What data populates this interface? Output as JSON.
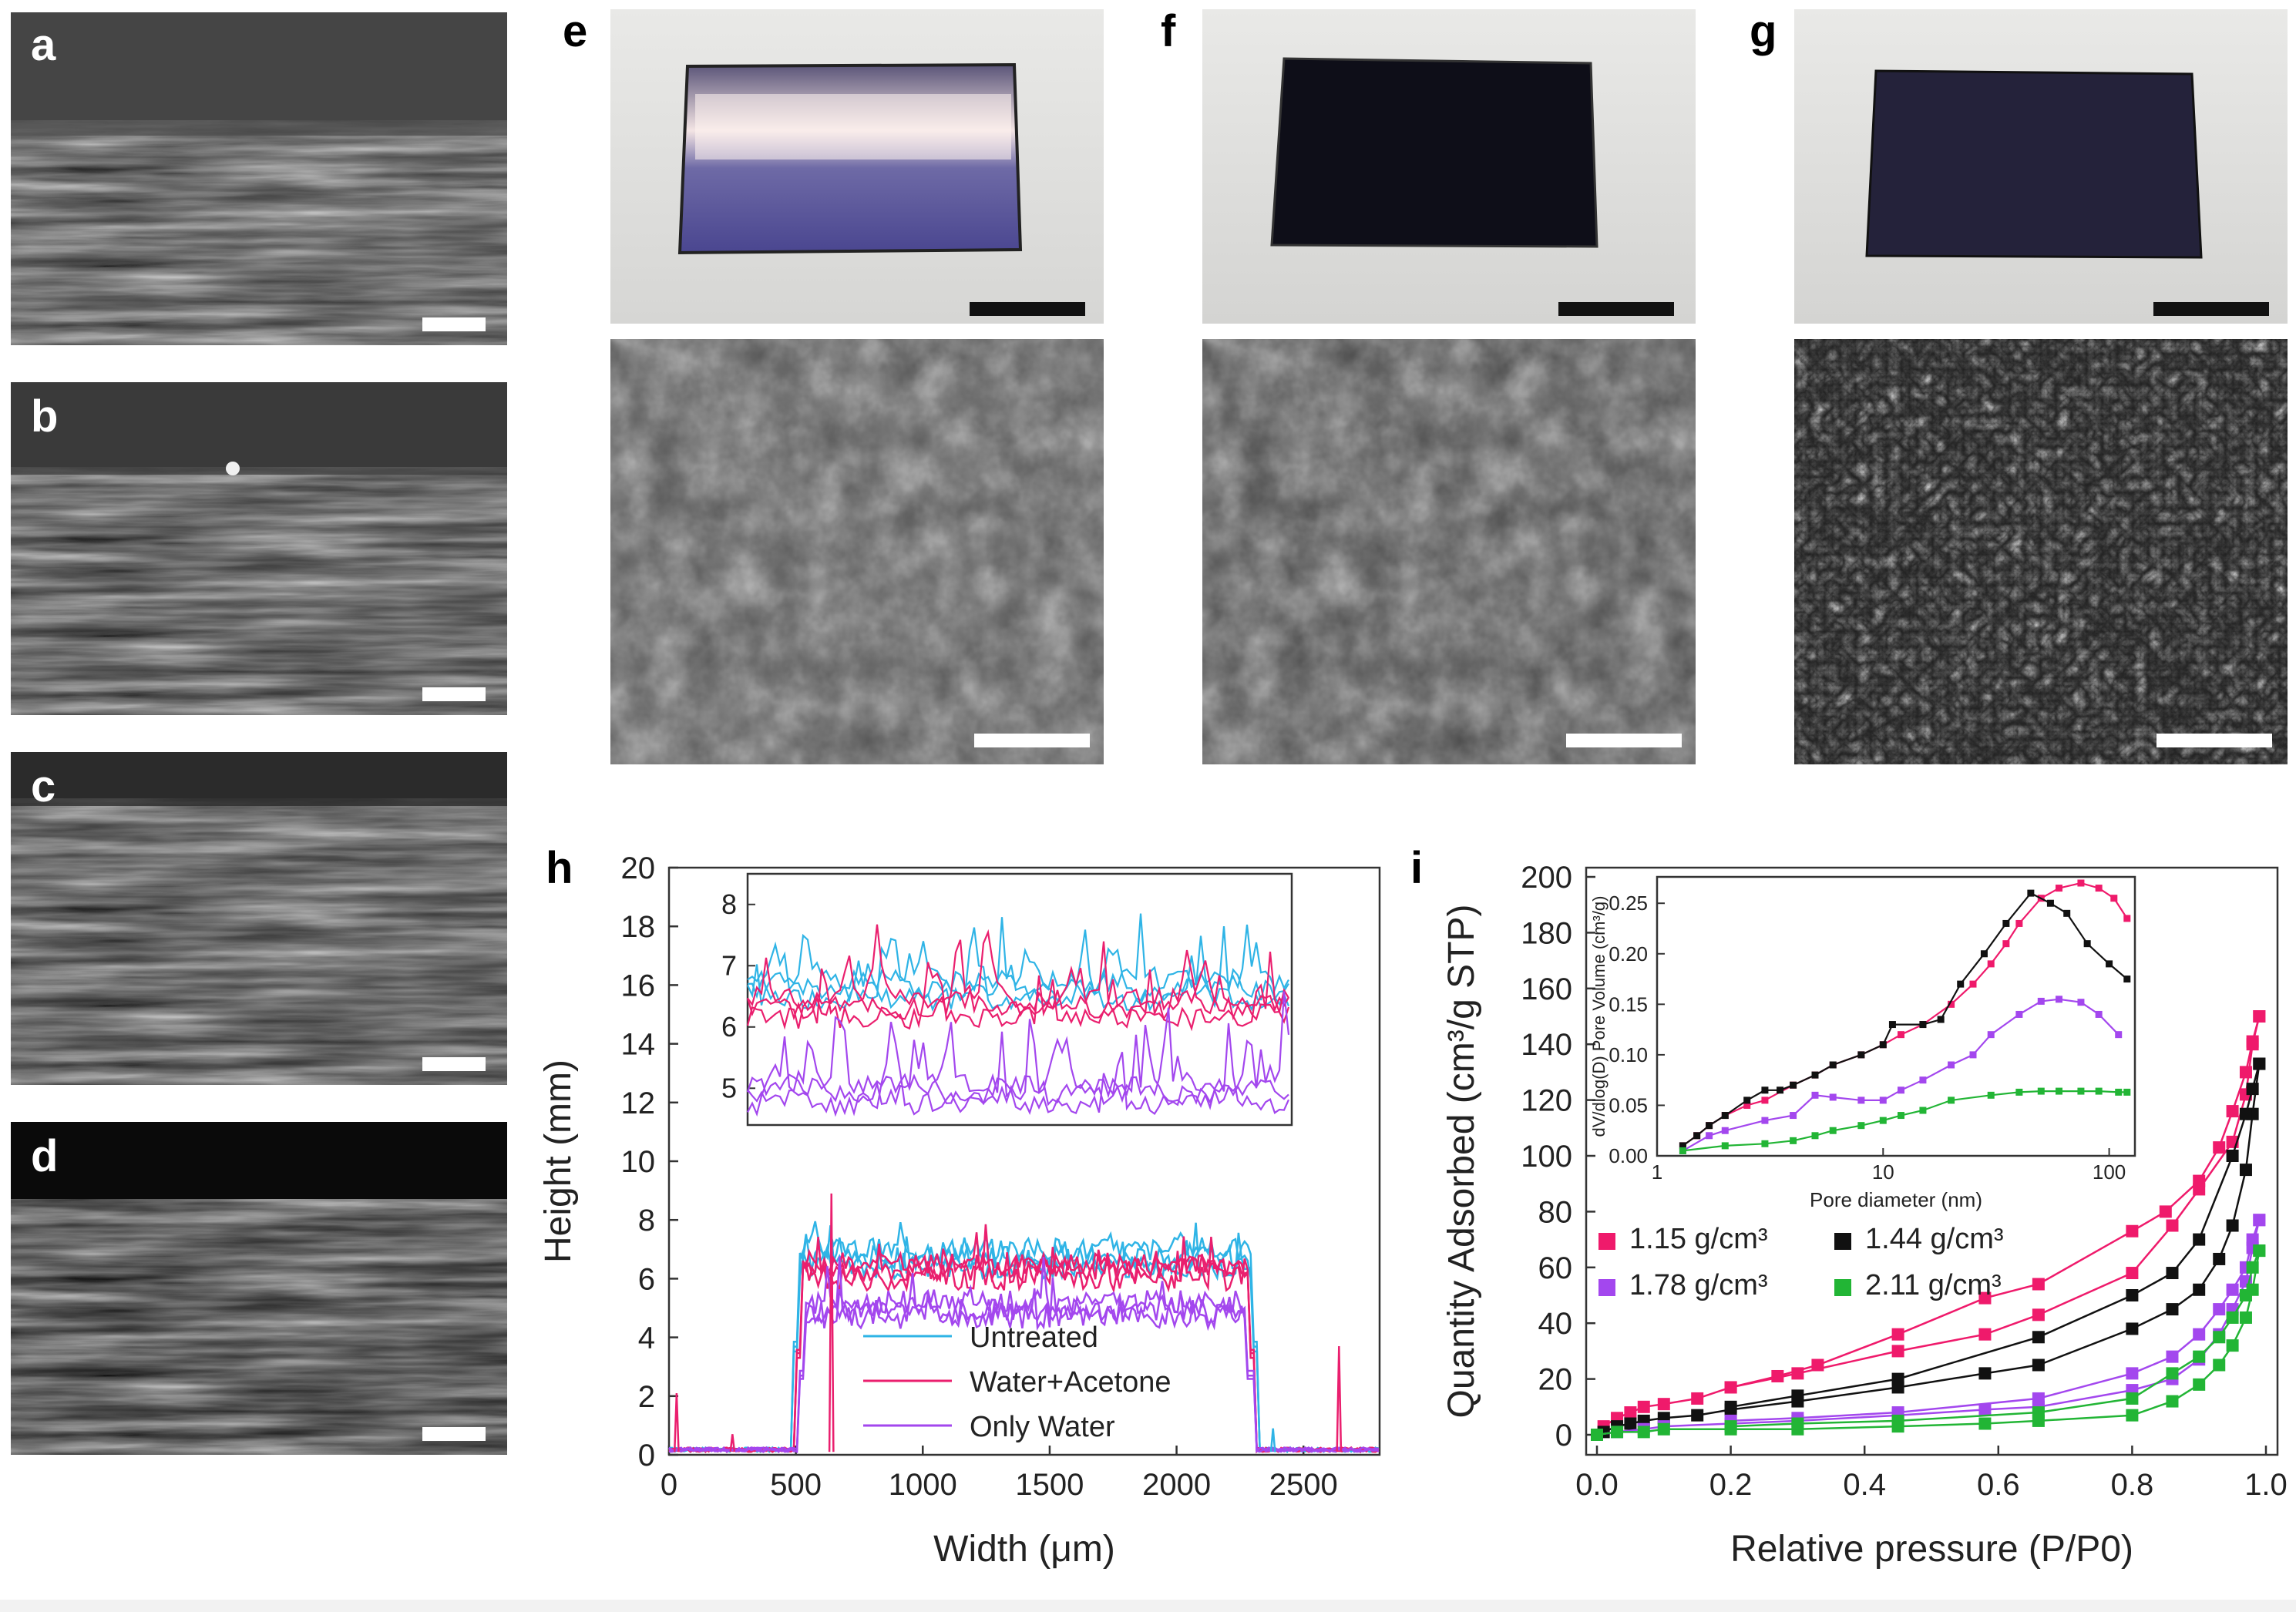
{
  "panels": {
    "a": "a",
    "b": "b",
    "c": "c",
    "d": "d",
    "e": "e",
    "f": "f",
    "g": "g",
    "h": "h",
    "i": "i"
  },
  "colors": {
    "untreated": "#2fb4e6",
    "water_acetone": "#ea1f6e",
    "only_water": "#a347ee",
    "d115": "#ef1a6b",
    "d144": "#111111",
    "d178": "#a347ee",
    "d211": "#22b535"
  },
  "chart_data": [
    {
      "id": "h",
      "type": "line",
      "xlabel": "Width (μm)",
      "ylabel": "Height (mm)",
      "xlim": [
        0,
        2800
      ],
      "ylim": [
        0,
        20
      ],
      "xticks": [
        0,
        500,
        1000,
        1500,
        2000,
        2500
      ],
      "yticks": [
        0,
        2,
        4,
        6,
        8,
        10,
        12,
        14,
        16,
        18,
        20
      ],
      "legend_position": "center-bottom",
      "series": [
        {
          "name": "Untreated",
          "color_key": "untreated",
          "plateau": [
            6.7,
            7.0,
            6.4
          ],
          "edges": [
            500,
            2310
          ]
        },
        {
          "name": "Water+Acetone",
          "color_key": "water_acetone",
          "plateau": [
            6.3,
            6.0,
            6.5
          ],
          "edges": [
            510,
            2300
          ]
        },
        {
          "name": "Only Water",
          "color_key": "only_water",
          "plateau": [
            4.9,
            5.2,
            4.7
          ],
          "edges": [
            520,
            2290
          ]
        }
      ],
      "spikes": [
        {
          "x": 30,
          "y": 2.1,
          "color_key": "water_acetone"
        },
        {
          "x": 250,
          "y": 0.7,
          "color_key": "water_acetone"
        },
        {
          "x": 640,
          "y": 8.9,
          "color_key": "water_acetone"
        },
        {
          "x": 2640,
          "y": 3.7,
          "color_key": "water_acetone"
        },
        {
          "x": 2380,
          "y": 0.9,
          "color_key": "untreated"
        }
      ],
      "inset": {
        "yticks": [
          5,
          6,
          7,
          8
        ],
        "ylim": [
          4.4,
          8.5
        ]
      }
    },
    {
      "id": "i",
      "type": "scatter",
      "xlabel": "Relative pressure (P/P0)",
      "ylabel": "Quantity Adsorbed (cm³/g STP)",
      "xlim": [
        0,
        1.0
      ],
      "ylim": [
        0,
        200
      ],
      "xticks": [
        0.0,
        0.2,
        0.4,
        0.6,
        0.8,
        1.0
      ],
      "yticks": [
        0,
        20,
        40,
        60,
        80,
        100,
        120,
        140,
        160,
        180,
        200
      ],
      "legend_position": "center-left",
      "series": [
        {
          "name": "1.15 g/cm³",
          "color_key": "d115",
          "adsorption": [
            [
              0.0,
              0
            ],
            [
              0.01,
              3
            ],
            [
              0.03,
              6
            ],
            [
              0.05,
              8
            ],
            [
              0.07,
              10
            ],
            [
              0.1,
              11
            ],
            [
              0.15,
              13
            ],
            [
              0.2,
              17
            ],
            [
              0.27,
              21
            ],
            [
              0.33,
              25
            ],
            [
              0.45,
              36
            ],
            [
              0.58,
              49
            ],
            [
              0.66,
              54
            ],
            [
              0.8,
              73
            ],
            [
              0.85,
              80
            ],
            [
              0.9,
              91
            ],
            [
              0.93,
              103
            ],
            [
              0.95,
              116
            ],
            [
              0.97,
              130
            ],
            [
              0.98,
              141
            ],
            [
              0.99,
              150
            ]
          ],
          "desorption": [
            [
              0.99,
              150
            ],
            [
              0.98,
              140
            ],
            [
              0.97,
              122
            ],
            [
              0.95,
              105
            ],
            [
              0.9,
              88
            ],
            [
              0.86,
              75
            ],
            [
              0.8,
              58
            ],
            [
              0.66,
              43
            ],
            [
              0.58,
              36
            ],
            [
              0.45,
              30
            ],
            [
              0.3,
              22
            ],
            [
              0.2,
              17
            ]
          ]
        },
        {
          "name": "1.44 g/cm³",
          "color_key": "d144",
          "adsorption": [
            [
              0.0,
              0
            ],
            [
              0.01,
              1
            ],
            [
              0.03,
              3
            ],
            [
              0.05,
              4
            ],
            [
              0.07,
              5
            ],
            [
              0.1,
              6
            ],
            [
              0.15,
              7
            ],
            [
              0.2,
              9
            ],
            [
              0.3,
              12
            ],
            [
              0.45,
              17
            ],
            [
              0.58,
              22
            ],
            [
              0.66,
              25
            ],
            [
              0.8,
              38
            ],
            [
              0.86,
              45
            ],
            [
              0.9,
              52
            ],
            [
              0.93,
              63
            ],
            [
              0.95,
              75
            ],
            [
              0.97,
              95
            ],
            [
              0.98,
              115
            ],
            [
              0.99,
              133
            ]
          ],
          "desorption": [
            [
              0.99,
              133
            ],
            [
              0.98,
              124
            ],
            [
              0.97,
              115
            ],
            [
              0.95,
              100
            ],
            [
              0.9,
              70
            ],
            [
              0.86,
              58
            ],
            [
              0.8,
              50
            ],
            [
              0.66,
              35
            ],
            [
              0.45,
              20
            ],
            [
              0.3,
              14
            ],
            [
              0.2,
              10
            ]
          ]
        },
        {
          "name": "1.78 g/cm³",
          "color_key": "d178",
          "adsorption": [
            [
              0.0,
              0
            ],
            [
              0.03,
              1
            ],
            [
              0.07,
              2
            ],
            [
              0.1,
              3
            ],
            [
              0.2,
              4
            ],
            [
              0.3,
              5
            ],
            [
              0.45,
              7
            ],
            [
              0.58,
              9
            ],
            [
              0.66,
              10
            ],
            [
              0.8,
              16
            ],
            [
              0.86,
              20
            ],
            [
              0.9,
              27
            ],
            [
              0.93,
              36
            ],
            [
              0.95,
              45
            ],
            [
              0.97,
              55
            ],
            [
              0.98,
              67
            ],
            [
              0.99,
              77
            ]
          ],
          "desorption": [
            [
              0.99,
              77
            ],
            [
              0.98,
              70
            ],
            [
              0.97,
              60
            ],
            [
              0.95,
              52
            ],
            [
              0.93,
              45
            ],
            [
              0.9,
              36
            ],
            [
              0.86,
              28
            ],
            [
              0.8,
              22
            ],
            [
              0.66,
              13
            ],
            [
              0.45,
              8
            ],
            [
              0.3,
              6
            ],
            [
              0.2,
              5
            ]
          ]
        },
        {
          "name": "2.11 g/cm³",
          "color_key": "d211",
          "adsorption": [
            [
              0.0,
              0
            ],
            [
              0.03,
              1
            ],
            [
              0.07,
              1
            ],
            [
              0.1,
              2
            ],
            [
              0.2,
              2
            ],
            [
              0.3,
              2
            ],
            [
              0.45,
              3
            ],
            [
              0.58,
              4
            ],
            [
              0.66,
              5
            ],
            [
              0.8,
              7
            ],
            [
              0.86,
              12
            ],
            [
              0.9,
              18
            ],
            [
              0.93,
              25
            ],
            [
              0.95,
              32
            ],
            [
              0.97,
              42
            ],
            [
              0.98,
              52
            ],
            [
              0.99,
              66
            ]
          ],
          "desorption": [
            [
              0.99,
              66
            ],
            [
              0.98,
              60
            ],
            [
              0.97,
              50
            ],
            [
              0.95,
              42
            ],
            [
              0.93,
              35
            ],
            [
              0.9,
              28
            ],
            [
              0.86,
              22
            ],
            [
              0.8,
              13
            ],
            [
              0.66,
              8
            ],
            [
              0.45,
              5
            ],
            [
              0.3,
              4
            ],
            [
              0.2,
              3
            ]
          ]
        }
      ],
      "inset": {
        "type": "line",
        "xlabel": "Pore diameter (nm)",
        "ylabel": "dV/dlog(D) Pore Volume (cm³/g)",
        "xscale": "log",
        "xlim": [
          1,
          130
        ],
        "ylim": [
          0,
          0.27
        ],
        "xticks": [
          1,
          10,
          100
        ],
        "yticks": [
          0.0,
          0.05,
          0.1,
          0.15,
          0.2,
          0.25
        ],
        "series": [
          {
            "color_key": "d115",
            "points": [
              [
                1.3,
                0.01
              ],
              [
                1.5,
                0.02
              ],
              [
                1.7,
                0.03
              ],
              [
                2,
                0.04
              ],
              [
                2.5,
                0.05
              ],
              [
                3,
                0.055
              ],
              [
                4,
                0.07
              ],
              [
                5,
                0.08
              ],
              [
                6,
                0.09
              ],
              [
                8,
                0.1
              ],
              [
                10,
                0.11
              ],
              [
                12,
                0.12
              ],
              [
                15,
                0.13
              ],
              [
                20,
                0.15
              ],
              [
                25,
                0.17
              ],
              [
                30,
                0.19
              ],
              [
                35,
                0.21
              ],
              [
                40,
                0.23
              ],
              [
                50,
                0.255
              ],
              [
                60,
                0.265
              ],
              [
                75,
                0.27
              ],
              [
                90,
                0.265
              ],
              [
                105,
                0.255
              ],
              [
                120,
                0.235
              ]
            ]
          },
          {
            "color_key": "d144",
            "points": [
              [
                1.3,
                0.01
              ],
              [
                1.5,
                0.02
              ],
              [
                1.7,
                0.03
              ],
              [
                2,
                0.04
              ],
              [
                2.5,
                0.055
              ],
              [
                3,
                0.065
              ],
              [
                3.5,
                0.065
              ],
              [
                4,
                0.07
              ],
              [
                5,
                0.08
              ],
              [
                6,
                0.09
              ],
              [
                8,
                0.1
              ],
              [
                10,
                0.11
              ],
              [
                11,
                0.13
              ],
              [
                15,
                0.13
              ],
              [
                18,
                0.135
              ],
              [
                22,
                0.17
              ],
              [
                28,
                0.2
              ],
              [
                35,
                0.23
              ],
              [
                45,
                0.26
              ],
              [
                55,
                0.25
              ],
              [
                65,
                0.24
              ],
              [
                80,
                0.21
              ],
              [
                100,
                0.19
              ],
              [
                120,
                0.175
              ]
            ]
          },
          {
            "color_key": "d178",
            "points": [
              [
                1.3,
                0.005
              ],
              [
                1.7,
                0.02
              ],
              [
                2,
                0.025
              ],
              [
                3,
                0.035
              ],
              [
                4,
                0.04
              ],
              [
                5,
                0.06
              ],
              [
                6,
                0.058
              ],
              [
                8,
                0.055
              ],
              [
                10,
                0.055
              ],
              [
                12,
                0.065
              ],
              [
                15,
                0.075
              ],
              [
                20,
                0.09
              ],
              [
                25,
                0.1
              ],
              [
                30,
                0.12
              ],
              [
                40,
                0.14
              ],
              [
                50,
                0.153
              ],
              [
                60,
                0.155
              ],
              [
                75,
                0.152
              ],
              [
                90,
                0.14
              ],
              [
                110,
                0.12
              ]
            ]
          },
          {
            "color_key": "d211",
            "points": [
              [
                1.3,
                0.005
              ],
              [
                2,
                0.01
              ],
              [
                3,
                0.012
              ],
              [
                4,
                0.015
              ],
              [
                5,
                0.02
              ],
              [
                6,
                0.025
              ],
              [
                8,
                0.03
              ],
              [
                10,
                0.035
              ],
              [
                12,
                0.04
              ],
              [
                15,
                0.045
              ],
              [
                20,
                0.055
              ],
              [
                30,
                0.06
              ],
              [
                40,
                0.063
              ],
              [
                50,
                0.064
              ],
              [
                60,
                0.064
              ],
              [
                75,
                0.064
              ],
              [
                90,
                0.064
              ],
              [
                110,
                0.063
              ],
              [
                120,
                0.063
              ]
            ]
          }
        ]
      }
    }
  ]
}
